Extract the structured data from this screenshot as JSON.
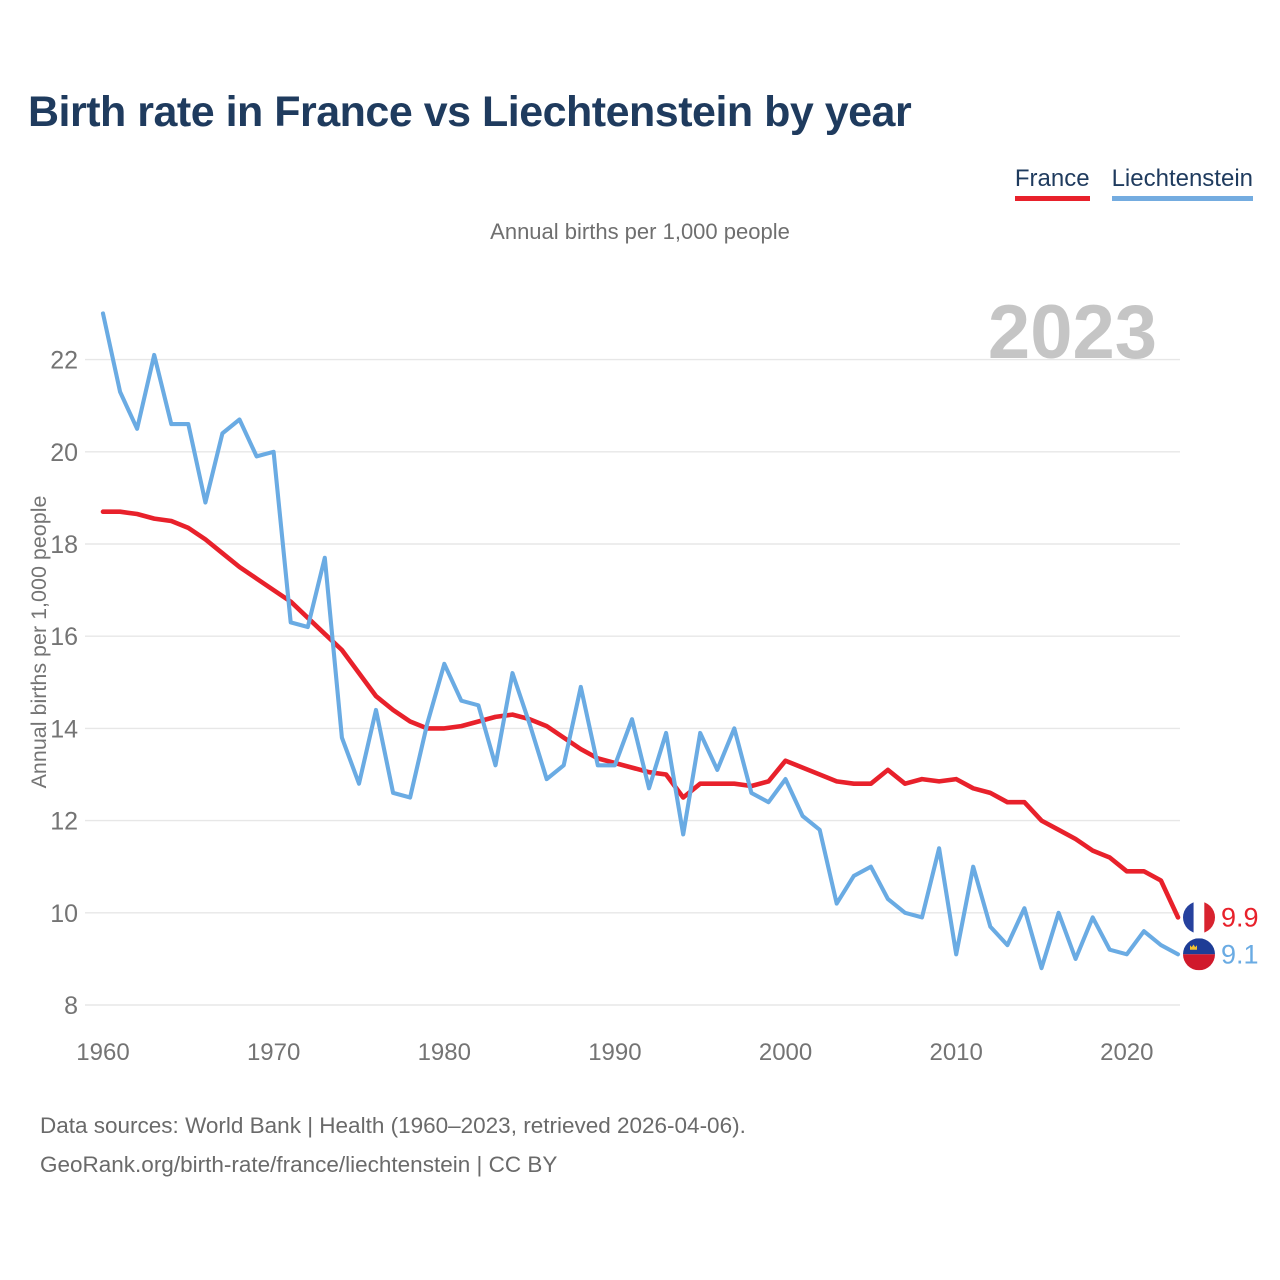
{
  "header": {
    "title": "Birth rate in France vs Liechtenstein by year"
  },
  "legend": {
    "items": [
      {
        "label": "France",
        "color": "#e8212b"
      },
      {
        "label": "Liechtenstein",
        "color": "#74ace0"
      }
    ]
  },
  "footer": {
    "line1": "Data sources: World Bank | Health (1960–2023, retrieved 2026-04-06).",
    "line2": "GeoRank.org/birth-rate/france/liechtenstein | CC BY"
  },
  "colors": {
    "france": "#e8212b",
    "liechtenstein": "#6aabe3",
    "title_navy": "#1f3b5e",
    "watermark_gray": "#c5c5c5",
    "grid_gray": "#e7e7e7",
    "tick_gray": "#747474"
  },
  "chart_data": {
    "type": "line",
    "title": "Birth rate in France vs Liechtenstein by year",
    "subtitle": "Annual births per 1,000 people",
    "ylabel": "Annual births per 1,000 people",
    "watermark": "2023",
    "grid": true,
    "legend_position": "top-right",
    "x_start": 1960,
    "x_end": 2023,
    "xticks": [
      1960,
      1970,
      1980,
      1990,
      2000,
      2010,
      2020
    ],
    "yticks": [
      8,
      10,
      12,
      14,
      16,
      18,
      20,
      22
    ],
    "ylim": [
      7.8,
      23.3
    ],
    "series": [
      {
        "name": "France",
        "color": "#e8212b",
        "end_label": "9.9",
        "flag": "france",
        "values": [
          18.7,
          18.7,
          18.65,
          18.55,
          18.5,
          18.35,
          18.1,
          17.8,
          17.5,
          17.25,
          17.0,
          16.75,
          16.4,
          16.05,
          15.7,
          15.2,
          14.7,
          14.4,
          14.15,
          14.0,
          14.0,
          14.05,
          14.15,
          14.25,
          14.3,
          14.2,
          14.05,
          13.8,
          13.55,
          13.35,
          13.25,
          13.15,
          13.05,
          13.0,
          12.5,
          12.8,
          12.8,
          12.8,
          12.75,
          12.85,
          13.3,
          13.15,
          13.0,
          12.85,
          12.8,
          12.8,
          13.1,
          12.8,
          12.9,
          12.85,
          12.9,
          12.7,
          12.6,
          12.4,
          12.4,
          12.0,
          11.8,
          11.6,
          11.35,
          11.2,
          10.9,
          10.9,
          10.7,
          9.9
        ]
      },
      {
        "name": "Liechtenstein",
        "color": "#6aabe3",
        "end_label": "9.1",
        "flag": "liechtenstein",
        "values": [
          23.0,
          21.3,
          20.5,
          22.1,
          20.6,
          20.6,
          18.9,
          20.4,
          20.7,
          19.9,
          20.0,
          16.3,
          16.2,
          17.7,
          13.8,
          12.8,
          14.4,
          12.6,
          12.5,
          14.1,
          15.4,
          14.6,
          14.5,
          13.2,
          15.2,
          14.1,
          12.9,
          13.2,
          14.9,
          13.2,
          13.2,
          14.2,
          12.7,
          13.9,
          11.7,
          13.9,
          13.1,
          14.0,
          12.6,
          12.4,
          12.9,
          12.1,
          11.8,
          10.2,
          10.8,
          11.0,
          10.3,
          10.0,
          9.9,
          11.4,
          9.1,
          11.0,
          9.7,
          9.3,
          10.1,
          8.8,
          10.0,
          9.0,
          9.9,
          9.2,
          9.1,
          9.6,
          9.3,
          9.1
        ]
      }
    ]
  }
}
